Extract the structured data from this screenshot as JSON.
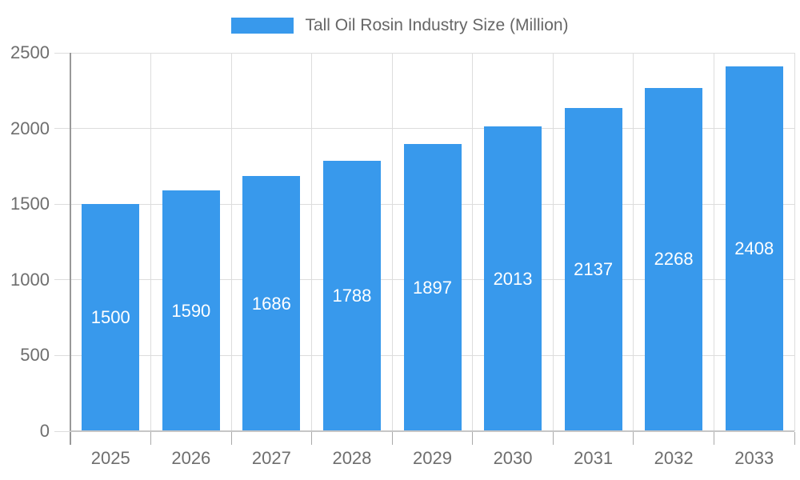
{
  "chart_data": {
    "type": "bar",
    "title": "Tall Oil Rosin Industry Size (Million)",
    "legend": [
      {
        "label": "Tall Oil Rosin Industry Size (Million)"
      }
    ],
    "legend_position": "top-center",
    "categories": [
      "2025",
      "2026",
      "2027",
      "2028",
      "2029",
      "2030",
      "2031",
      "2032",
      "2033"
    ],
    "series": [
      {
        "name": "Tall Oil Rosin Industry Size (Million)",
        "values": [
          1500,
          1590,
          1686,
          1788,
          1897,
          2013,
          2137,
          2268,
          2408
        ]
      }
    ],
    "bar_value_labels": [
      "1500",
      "1590",
      "1686",
      "1788",
      "1897",
      "2013",
      "2137",
      "2268",
      "2408"
    ],
    "xlabel": "",
    "ylabel": "",
    "ylim": [
      0,
      2500
    ],
    "ytick_step": 500,
    "ytick_labels": [
      "0",
      "500",
      "1000",
      "1500",
      "2000",
      "2500"
    ],
    "grid": true,
    "colors": {
      "bar": "#3899EC",
      "bar_label_text": "#ffffff",
      "gridline": "#dddddd",
      "y_axis_line": "#999999",
      "x_baseline": "#c6c6c6",
      "x_tick": "#aaaaaa",
      "y_tick": "#dddddd",
      "tick_label_text": "#6e6e6e",
      "legend_text": "#666666",
      "background": "#ffffff"
    }
  }
}
